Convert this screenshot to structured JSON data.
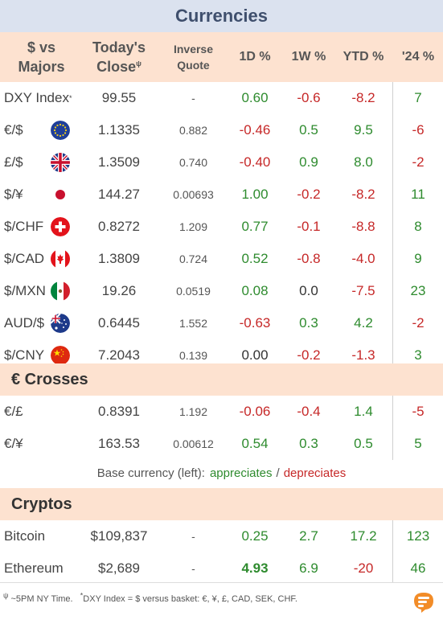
{
  "title": "Currencies",
  "header": {
    "c1_line1": "$ vs",
    "c1_line2": "Majors",
    "c2_line1": "Today's",
    "c2_line2": "Close",
    "c2_sup": "ψ",
    "c3_line1": "Inverse",
    "c3_line2": "Quote",
    "c4": "1D %",
    "c5": "1W %",
    "c6": "YTD %",
    "c7": "'24 %"
  },
  "majors": [
    {
      "name": "DXY Index",
      "sup": "*",
      "close": "99.55",
      "inverse": "-",
      "d1": "0.60",
      "w1": "-0.6",
      "ytd": "-8.2",
      "y24": "7",
      "flag": "none"
    },
    {
      "name": "€/$",
      "close": "1.1335",
      "inverse": "0.882",
      "d1": "-0.46",
      "w1": "0.5",
      "ytd": "9.5",
      "y24": "-6",
      "flag": "eu"
    },
    {
      "name": "£/$",
      "close": "1.3509",
      "inverse": "0.740",
      "d1": "-0.40",
      "w1": "0.9",
      "ytd": "8.0",
      "y24": "-2",
      "flag": "uk"
    },
    {
      "name": "$/¥",
      "close": "144.27",
      "inverse": "0.00693",
      "d1": "1.00",
      "w1": "-0.2",
      "ytd": "-8.2",
      "y24": "11",
      "flag": "jp"
    },
    {
      "name": "$/CHF",
      "close": "0.8272",
      "inverse": "1.209",
      "d1": "0.77",
      "w1": "-0.1",
      "ytd": "-8.8",
      "y24": "8",
      "flag": "ch"
    },
    {
      "name": "$/CAD",
      "close": "1.3809",
      "inverse": "0.724",
      "d1": "0.52",
      "w1": "-0.8",
      "ytd": "-4.0",
      "y24": "9",
      "flag": "ca"
    },
    {
      "name": "$/MXN",
      "close": "19.26",
      "inverse": "0.0519",
      "d1": "0.08",
      "w1": "0.0",
      "ytd": "-7.5",
      "y24": "23",
      "flag": "mx"
    },
    {
      "name": "AUD/$",
      "close": "0.6445",
      "inverse": "1.552",
      "d1": "-0.63",
      "w1": "0.3",
      "ytd": "4.2",
      "y24": "-2",
      "flag": "au"
    },
    {
      "name": "$/CNY",
      "close": "7.2043",
      "inverse": "0.139",
      "d1": "0.00",
      "w1": "-0.2",
      "ytd": "-1.3",
      "y24": "3",
      "flag": "cn"
    }
  ],
  "crosses_title": "€ Crosses",
  "crosses": [
    {
      "name": "€/£",
      "close": "0.8391",
      "inverse": "1.192",
      "d1": "-0.06",
      "w1": "-0.4",
      "ytd": "1.4",
      "y24": "-5"
    },
    {
      "name": "€/¥",
      "close": "163.53",
      "inverse": "0.00612",
      "d1": "0.54",
      "w1": "0.3",
      "ytd": "0.5",
      "y24": "5"
    }
  ],
  "legend": {
    "prefix": "Base currency (left):",
    "appreciates": "appreciates",
    "slash": "/",
    "depreciates": "depreciates"
  },
  "cryptos_title": "Cryptos",
  "cryptos": [
    {
      "name": "Bitcoin",
      "close": "$109,837",
      "inverse": "-",
      "d1": "0.25",
      "w1": "2.7",
      "ytd": "17.2",
      "y24": "123"
    },
    {
      "name": "Ethereum",
      "close": "$2,689",
      "inverse": "-",
      "d1": "4.93",
      "w1": "6.9",
      "ytd": "-20",
      "y24": "46",
      "d1_bold": true
    }
  ],
  "footer": {
    "note1_sup": "ψ",
    "note1": " ~5PM NY Time.",
    "note2_sup": "*",
    "note2": "DXY Index = $ versus basket: €, ¥, £, CAD, SEK, CHF."
  },
  "colors": {
    "positive": "#2e8b2e",
    "negative": "#c62828",
    "title_bg": "#dbe2ef",
    "header_bg": "#fde2d0",
    "logo": "#f28c28"
  },
  "icons": {
    "logo": "logo-icon"
  }
}
